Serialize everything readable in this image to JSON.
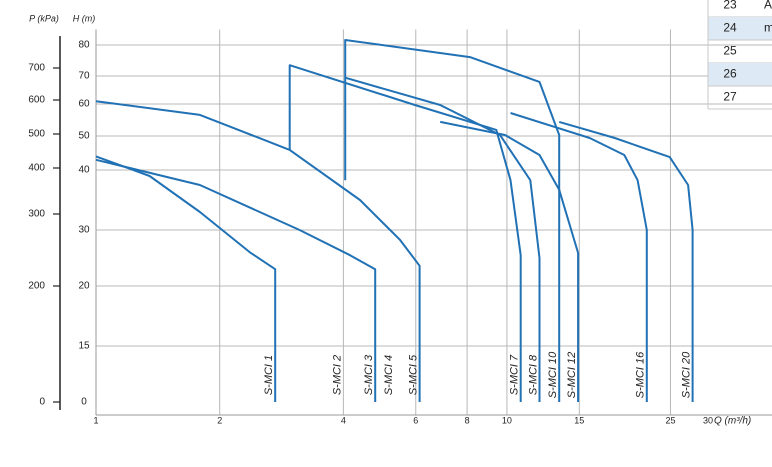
{
  "chart_data": {
    "type": "line",
    "x_scale": "log",
    "xlabel": "Q (m³/h)",
    "ylabel": "H (m)",
    "y2label": "P (kPa)",
    "xlim": [
      1,
      30
    ],
    "xticks": [
      1,
      2,
      4,
      6,
      8,
      10,
      15,
      25,
      30
    ],
    "ylim": [
      0,
      85
    ],
    "yticks": [
      0,
      15,
      20,
      30,
      40,
      50,
      60,
      70,
      80
    ],
    "y2lim": [
      0,
      800
    ],
    "y2ticks": [
      0,
      200,
      300,
      400,
      500,
      600,
      700
    ],
    "grid": true,
    "series": [
      {
        "name": "S-MCI 1",
        "color": "#2171b5",
        "x": [
          1,
          1.35,
          1.79,
          2.37,
          2.73,
          2.73
        ],
        "values": [
          44,
          39,
          33,
          26,
          23,
          0
        ]
      },
      {
        "name": "S-MCI 3",
        "color": "#2171b5",
        "x": [
          1,
          1.79,
          3.13,
          4.15,
          4.78,
          4.78
        ],
        "values": [
          43,
          37.5,
          30,
          25.5,
          23,
          0
        ]
      },
      {
        "name": "S-MCI 5",
        "color": "#2171b5",
        "x": [
          1,
          1.79,
          2.96,
          4.39,
          5.5,
          6.13,
          6.13
        ],
        "values": [
          61,
          56.6,
          45.9,
          35,
          28.2,
          23.6,
          0
        ]
      },
      {
        "name": "S-MCI 7",
        "color": "#2171b5",
        "x": [
          2.96,
          2.96,
          5.97,
          9.42,
          10.2,
          10.8,
          10.8
        ],
        "values": [
          45.9,
          73.5,
          59.7,
          51.9,
          38.3,
          25.5,
          0
        ]
      },
      {
        "name": "S-MCI 8",
        "color": "#2171b5",
        "x": [
          4.04,
          6.88,
          9.62,
          11.4,
          12,
          12
        ],
        "values": [
          69.4,
          59.7,
          50.3,
          38.3,
          25,
          0
        ]
      },
      {
        "name": "S-MCI 10",
        "color": "#2171b5",
        "x": [
          4.04,
          4.04,
          8.13,
          12,
          13.4,
          13.4
        ],
        "values": [
          38.3,
          81.6,
          76.1,
          67.9,
          50.3,
          0
        ]
      },
      {
        "name": "S-MCI 12",
        "color": "#2171b5",
        "x": [
          6.88,
          9.89,
          12,
          13.4,
          14.9,
          14.9
        ],
        "values": [
          54.4,
          50.3,
          44.4,
          36.7,
          25.9,
          0
        ]
      },
      {
        "name": "S-MCI 16",
        "color": "#2171b5",
        "x": [
          10.2,
          15.9,
          19.3,
          20.8,
          21.9,
          21.9
        ],
        "values": [
          57.2,
          49.4,
          44.4,
          38.3,
          30,
          0
        ]
      },
      {
        "name": "S-MCI 20",
        "color": "#2171b5",
        "x": [
          13.4,
          18.3,
          24.9,
          27.6,
          28.3,
          28.3
        ],
        "values": [
          54.4,
          49.4,
          43.8,
          37.5,
          30,
          0
        ]
      }
    ],
    "annotations": [
      {
        "text": "S-MCI 2",
        "x": 4
      },
      {
        "text": "S-MCI 4",
        "x": 5.34
      }
    ]
  },
  "table": {
    "rows": [
      [
        "23",
        "A"
      ],
      [
        "24",
        "m"
      ],
      [
        "25"
      ],
      [
        "26"
      ],
      [
        "27"
      ]
    ]
  }
}
